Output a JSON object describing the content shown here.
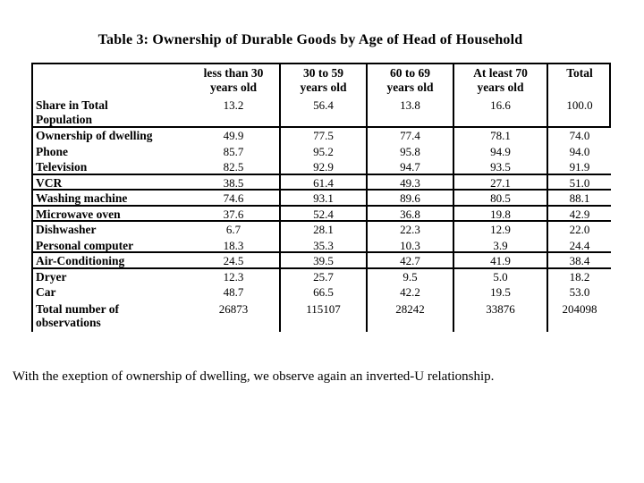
{
  "slide": {
    "title": "Table 3: Ownership of Durable Goods by Age of Head of Household",
    "caption": "With the exeption of ownership of dwelling, we observe again an inverted-U relationship."
  },
  "colors": {
    "text": "#000000",
    "background": "#ffffff",
    "table_border": "#000000"
  },
  "chart_data": {
    "type": "table",
    "title": "Table 3: Ownership of Durable Goods by Age of Head of Household",
    "columns": [
      "",
      "less than 30\nyears old",
      "30 to 59\nyears old",
      "60 to 69\nyears old",
      "At least 70\nyears old",
      "Total"
    ],
    "rows": [
      {
        "label": "Share in Total\nPopulation",
        "values": [
          "13.2",
          "56.4",
          "13.8",
          "16.6",
          "100.0"
        ],
        "tall": true,
        "rule_below": true
      },
      {
        "label": "Ownership of dwelling",
        "values": [
          "49.9",
          "77.5",
          "77.4",
          "78.1",
          "74.0"
        ],
        "tall": false,
        "rule_below": false
      },
      {
        "label": "Phone",
        "values": [
          "85.7",
          "95.2",
          "95.8",
          "94.9",
          "94.0"
        ],
        "tall": false,
        "rule_below": false
      },
      {
        "label": "Television",
        "values": [
          "82.5",
          "92.9",
          "94.7",
          "93.5",
          "91.9"
        ],
        "tall": false,
        "rule_below": true
      },
      {
        "label": "VCR",
        "values": [
          "38.5",
          "61.4",
          "49.3",
          "27.1",
          "51.0"
        ],
        "tall": false,
        "rule_below": true
      },
      {
        "label": "Washing machine",
        "values": [
          "74.6",
          "93.1",
          "89.6",
          "80.5",
          "88.1"
        ],
        "tall": false,
        "rule_below": true
      },
      {
        "label": "Microwave oven",
        "values": [
          "37.6",
          "52.4",
          "36.8",
          "19.8",
          "42.9"
        ],
        "tall": false,
        "rule_below": true
      },
      {
        "label": "Dishwasher",
        "values": [
          "6.7",
          "28.1",
          "22.3",
          "12.9",
          "22.0"
        ],
        "tall": false,
        "rule_below": false
      },
      {
        "label": "Personal computer",
        "values": [
          "18.3",
          "35.3",
          "10.3",
          "3.9",
          "24.4"
        ],
        "tall": false,
        "rule_below": true
      },
      {
        "label": "Air-Conditioning",
        "values": [
          "24.5",
          "39.5",
          "42.7",
          "41.9",
          "38.4"
        ],
        "tall": false,
        "rule_below": true
      },
      {
        "label": "Dryer",
        "values": [
          "12.3",
          "25.7",
          "9.5",
          "5.0",
          "18.2"
        ],
        "tall": false,
        "rule_below": false
      },
      {
        "label": "Car",
        "values": [
          "48.7",
          "66.5",
          "42.2",
          "19.5",
          "53.0"
        ],
        "tall": false,
        "rule_below": false
      },
      {
        "label": "Total number of\nobservations",
        "values": [
          "26873",
          "115107",
          "28242",
          "33876",
          "204098"
        ],
        "tall": true,
        "rule_below": false
      }
    ]
  }
}
